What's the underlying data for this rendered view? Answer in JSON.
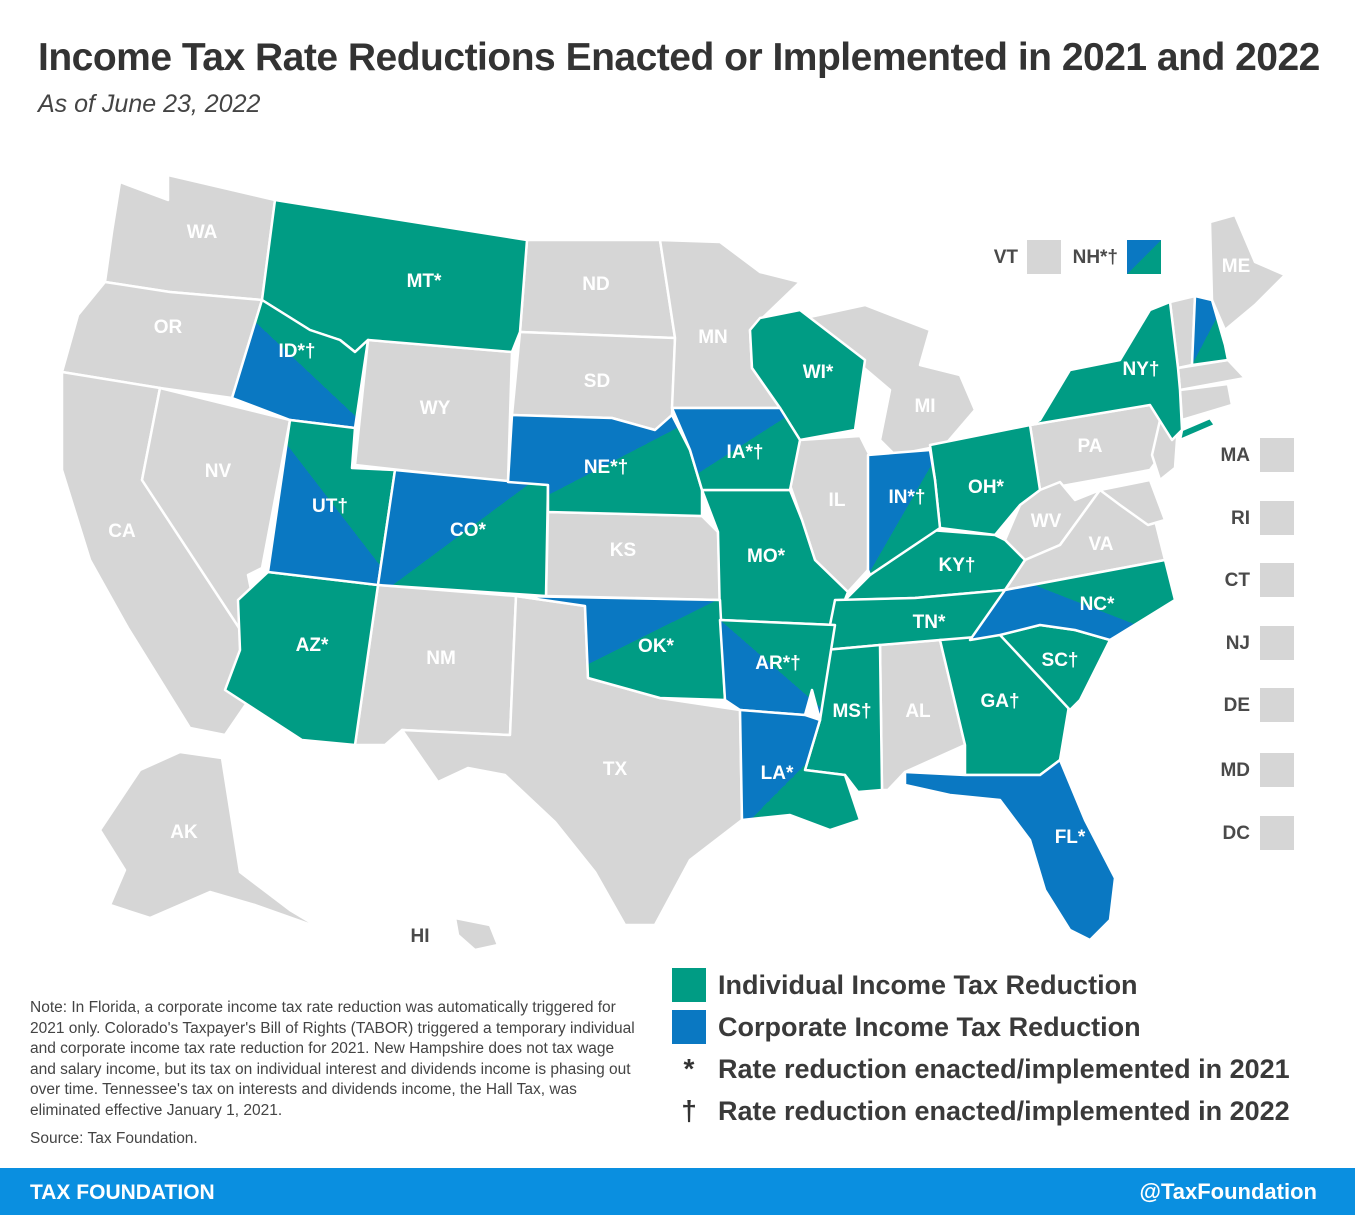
{
  "title": "Income Tax Rate Reductions Enacted or Implemented in 2021 and 2022",
  "subtitle": "As of June 23, 2022",
  "colors": {
    "individual": "#009c84",
    "corporate": "#0a78c2",
    "none": "#d6d6d6",
    "footer": "#0a8fe0"
  },
  "states": {
    "WA": "WA",
    "OR": "OR",
    "CA": "CA",
    "NV": "NV",
    "ID": "ID*†",
    "MT": "MT*",
    "WY": "WY",
    "UT": "UT†",
    "AZ": "AZ*",
    "CO": "CO*",
    "NM": "NM",
    "ND": "ND",
    "SD": "SD",
    "NE": "NE*†",
    "KS": "KS",
    "OK": "OK*",
    "TX": "TX",
    "MN": "MN",
    "IA": "IA*†",
    "MO": "MO*",
    "AR": "AR*†",
    "LA": "LA*",
    "WI": "WI*",
    "IL": "IL",
    "MI": "MI",
    "IN": "IN*†",
    "OH": "OH*",
    "KY": "KY†",
    "TN": "TN*",
    "MS": "MS†",
    "AL": "AL",
    "GA": "GA†",
    "FL": "FL*",
    "SC": "SC†",
    "NC": "NC*",
    "VA": "VA",
    "WV": "WV",
    "PA": "PA",
    "NY": "NY†",
    "ME": "ME",
    "AK": "AK",
    "HI": "HI"
  },
  "small_states": [
    {
      "label": "VT",
      "status": "none"
    },
    {
      "label": "NH*†",
      "status": "both"
    },
    {
      "label": "MA",
      "status": "none"
    },
    {
      "label": "RI",
      "status": "none"
    },
    {
      "label": "CT",
      "status": "none"
    },
    {
      "label": "NJ",
      "status": "none"
    },
    {
      "label": "DE",
      "status": "none"
    },
    {
      "label": "MD",
      "status": "none"
    },
    {
      "label": "DC",
      "status": "none"
    }
  ],
  "legend": {
    "individual": "Individual Income Tax Reduction",
    "corporate": "Corporate Income Tax Reduction",
    "asterisk_symbol": "*",
    "asterisk_text": "Rate reduction enacted/implemented in 2021",
    "dagger_symbol": "†",
    "dagger_text": "Rate reduction enacted/implemented in 2022"
  },
  "note": "Note: In Florida, a corporate income tax rate reduction was automatically triggered for 2021 only. Colorado's Taxpayer's Bill of Rights (TABOR) triggered a temporary individual and corporate income tax rate reduction for 2021. New Hampshire does not tax wage and salary income, but its tax on individual interest and dividends income is phasing out over time. Tennessee's tax on interests and dividends income, the Hall Tax, was eliminated effective January 1, 2021.",
  "source": "Source: Tax Foundation.",
  "footer": {
    "left": "TAX FOUNDATION",
    "right": "@TaxFoundation"
  }
}
